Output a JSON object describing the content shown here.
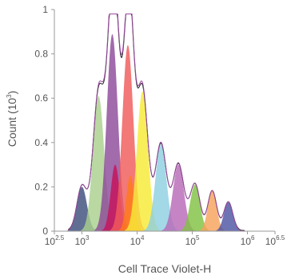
{
  "chart_data": {
    "type": "area",
    "title": "",
    "xlabel": "Cell Trace Violet-H",
    "ylabel_main": "Count (10",
    "ylabel_exp": "3",
    "ylabel_close": ")",
    "x_scale": "log",
    "xlim": [
      316.2,
      3162278
    ],
    "ylim": [
      0,
      1
    ],
    "grid": false,
    "y_ticks": [
      {
        "value": 0,
        "label": "0"
      },
      {
        "value": 0.2,
        "label": "0.2"
      },
      {
        "value": 0.4,
        "label": "0.4"
      },
      {
        "value": 0.6,
        "label": "0.6"
      },
      {
        "value": 0.8,
        "label": "0.8"
      },
      {
        "value": 1,
        "label": "1"
      }
    ],
    "x_ticks": [
      {
        "value": 316.2,
        "base": "10",
        "exp": "2.5"
      },
      {
        "value": 1000,
        "base": "10",
        "exp": "3"
      },
      {
        "value": 10000,
        "base": "10",
        "exp": "4"
      },
      {
        "value": 100000,
        "base": "10",
        "exp": "5"
      },
      {
        "value": 1000000,
        "base": "10",
        "exp": "6"
      },
      {
        "value": 3162278,
        "base": "10",
        "exp": "6.5"
      }
    ],
    "series": [
      {
        "color": "#3d4e7c",
        "peak_x": 1000,
        "peak_y": 0.2,
        "width_log": 0.09
      },
      {
        "color": "#a9d08e",
        "peak_x": 2000,
        "peak_y": 0.61,
        "width_log": 0.1
      },
      {
        "color": "#8e4a9a",
        "peak_x": 3550,
        "peak_y": 0.89,
        "width_log": 0.1
      },
      {
        "color": "#c7125a",
        "peak_x": 4000,
        "peak_y": 0.3,
        "width_log": 0.08
      },
      {
        "color": "#f05a5a",
        "peak_x": 6800,
        "peak_y": 0.84,
        "width_log": 0.1
      },
      {
        "color": "#ff7a1a",
        "peak_x": 7500,
        "peak_y": 0.25,
        "width_log": 0.07
      },
      {
        "color": "#f7ea36",
        "peak_x": 12500,
        "peak_y": 0.63,
        "width_log": 0.1
      },
      {
        "color": "#8fcfe0",
        "peak_x": 27000,
        "peak_y": 0.39,
        "width_log": 0.1
      },
      {
        "color": "#b86ab8",
        "peak_x": 56000,
        "peak_y": 0.3,
        "width_log": 0.1
      },
      {
        "color": "#80c242",
        "peak_x": 112000,
        "peak_y": 0.21,
        "width_log": 0.09
      },
      {
        "color": "#f7a25c",
        "peak_x": 230000,
        "peak_y": 0.18,
        "width_log": 0.08
      },
      {
        "color": "#4e54a4",
        "peak_x": 450000,
        "peak_y": 0.13,
        "width_log": 0.08
      }
    ],
    "envelope_colors": [
      "#222222",
      "#9a4aa0"
    ]
  }
}
